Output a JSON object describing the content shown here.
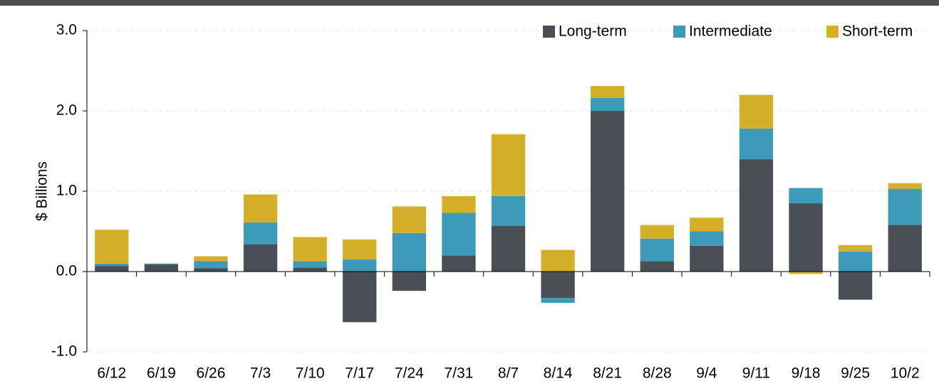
{
  "chart_data": {
    "type": "stacked_bar",
    "y_label": "$ Billions",
    "categories": [
      "6/12",
      "6/19",
      "6/26",
      "7/3",
      "7/10",
      "7/17",
      "7/24",
      "7/31",
      "8/7",
      "8/14",
      "8/21",
      "8/28",
      "9/4",
      "9/11",
      "9/18",
      "9/25",
      "10/2"
    ],
    "series": [
      {
        "name": "Long-term",
        "color": "#4a4e55",
        "values": [
          0.07,
          0.09,
          0.04,
          0.34,
          0.05,
          -0.63,
          -0.24,
          0.2,
          0.57,
          -0.33,
          2.0,
          0.13,
          0.32,
          1.4,
          0.85,
          -0.35,
          0.58
        ]
      },
      {
        "name": "Intermediate",
        "color": "#3d9ab9",
        "values": [
          0.03,
          0.01,
          0.09,
          0.27,
          0.08,
          0.15,
          0.48,
          0.53,
          0.37,
          -0.06,
          0.16,
          0.28,
          0.18,
          0.38,
          0.19,
          0.25,
          0.45
        ]
      },
      {
        "name": "Short-term",
        "color": "#d4b02a",
        "values": [
          0.42,
          0,
          0.06,
          0.35,
          0.3,
          0.25,
          0.33,
          0.21,
          0.77,
          0.27,
          0.15,
          0.17,
          0.17,
          0.42,
          -0.03,
          0.08,
          0.07
        ]
      }
    ],
    "ylim": [
      -1.0,
      3.0
    ],
    "yticks": [
      {
        "value": -1,
        "label": "-1.0"
      },
      {
        "value": 0,
        "label": "0.0"
      },
      {
        "value": 1,
        "label": "1.0"
      },
      {
        "value": 2,
        "label": "2.0"
      },
      {
        "value": 3,
        "label": "3.0"
      }
    ],
    "grid": true,
    "legend": "top-right"
  }
}
